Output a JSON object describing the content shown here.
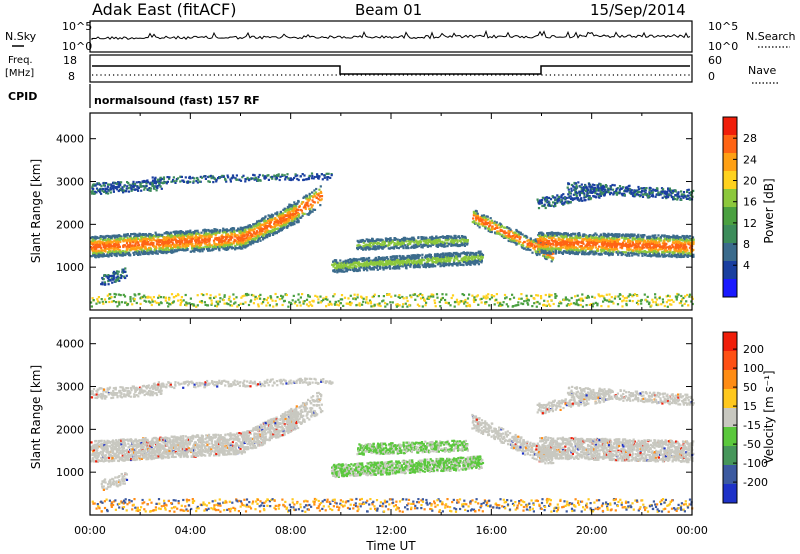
{
  "header": {
    "station": "Adak East (fitACF)",
    "beam": "Beam 01",
    "date": "15/Sep/2014"
  },
  "noise_panel": {
    "left_label": "N.Sky",
    "right_label": "N.Search",
    "left_ticks": [
      "10^5",
      "10^0"
    ],
    "right_ticks": [
      "10^5",
      "10^0"
    ]
  },
  "freq_panel": {
    "left_label_line1": "Freq.",
    "left_label_line2": "[MHz]",
    "right_label": "Nave",
    "left_ticks": [
      "18",
      "8"
    ],
    "right_ticks": [
      "60",
      "0"
    ],
    "cpid_label": "CPID",
    "cpid_text": "normalsound (fast) 157 RF"
  },
  "time_axis": {
    "ticks": [
      "00:00",
      "04:00",
      "08:00",
      "12:00",
      "16:00",
      "20:00",
      "00:00"
    ],
    "label": "Time UT"
  },
  "chart_data": [
    {
      "type": "heatmap",
      "name": "power",
      "ylabel": "Slant Range [km]",
      "yticks": [
        "1000",
        "2000",
        "3000",
        "4000"
      ],
      "ylim": [
        0,
        4600
      ],
      "xlim_hours": [
        0,
        24
      ],
      "colorbar_label": "Power [dB]",
      "colorbar_ticks": [
        "4",
        "8",
        "12",
        "16",
        "20",
        "24",
        "28"
      ],
      "colors": [
        "#1a1aff",
        "#1a3fa0",
        "#3b6b8c",
        "#3c8c5a",
        "#4aa040",
        "#8cc83c",
        "#ffd21e",
        "#ffa014",
        "#ff6414",
        "#f01e0a"
      ]
    },
    {
      "type": "heatmap",
      "name": "velocity",
      "ylabel": "Slant Range [km]",
      "yticks": [
        "1000",
        "2000",
        "3000",
        "4000"
      ],
      "ylim": [
        0,
        4600
      ],
      "xlim_hours": [
        0,
        24
      ],
      "colorbar_label": "Velocity [m s⁻¹]",
      "colorbar_ticks": [
        "200",
        "100",
        "50",
        "15",
        "-15",
        "-50",
        "-100",
        "-200"
      ],
      "colors": [
        "#1e32c8",
        "#3c5aa0",
        "#46965a",
        "#5ac83c",
        "#c8c8c0",
        "#ffc81e",
        "#ff8c14",
        "#ff5014",
        "#f01e0a"
      ]
    }
  ]
}
